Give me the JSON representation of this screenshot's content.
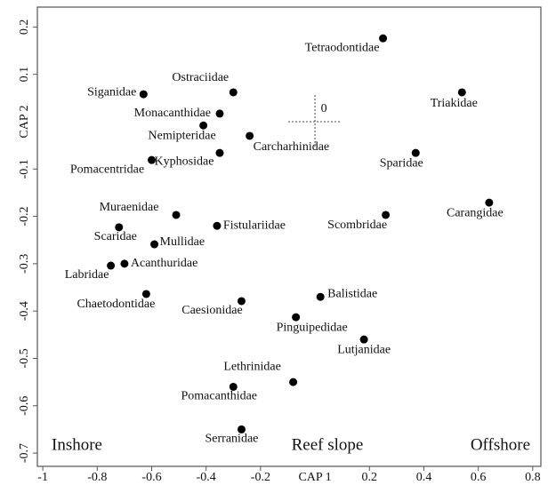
{
  "chart_data": {
    "type": "scatter",
    "xlabel": "CAP 1",
    "ylabel": "CAP 2",
    "xlim": [
      -1.02,
      0.83
    ],
    "ylim": [
      -0.728,
      0.242
    ],
    "xticks": [
      -1,
      -0.8,
      -0.6,
      -0.4,
      -0.2,
      0.2,
      0.4,
      0.6,
      0.8
    ],
    "yticks": [
      0.2,
      0.1,
      -0.1,
      -0.2,
      -0.3,
      -0.4,
      -0.5,
      -0.6,
      -0.7
    ],
    "color": "#000000",
    "annotations": [
      "Inshore",
      "Reef slope",
      "Offshore",
      "0"
    ],
    "labels": [
      "Tetraodontidae",
      "Triakidae",
      "Siganidae",
      "Ostraciidae",
      "Monacanthidae",
      "Nemipteridae",
      "Carcharhinidae",
      "Kyphosidae",
      "Pomacentridae",
      "Sparidae",
      "Carangidae",
      "Muraenidae",
      "Fistulariidae",
      "Scombridae",
      "Scaridae",
      "Mullidae",
      "Acanthuridae",
      "Labridae",
      "Chaetodontidae",
      "Caesionidae",
      "Balistidae",
      "Pinguipedidae",
      "Lutjanidae",
      "Lethrinidae",
      "Pomacanthidae",
      "Serranidae"
    ],
    "x": [
      0.25,
      0.54,
      -0.63,
      -0.3,
      -0.35,
      -0.41,
      -0.24,
      -0.35,
      -0.6,
      0.37,
      0.64,
      -0.51,
      -0.36,
      0.26,
      -0.72,
      -0.59,
      -0.7,
      -0.75,
      -0.62,
      -0.27,
      0.02,
      -0.07,
      0.18,
      -0.08,
      -0.3,
      -0.27
    ],
    "y": [
      0.176,
      0.062,
      0.058,
      0.062,
      0.017,
      -0.008,
      -0.03,
      -0.066,
      -0.081,
      -0.066,
      -0.171,
      -0.197,
      -0.22,
      -0.197,
      -0.223,
      -0.259,
      -0.3,
      -0.304,
      -0.364,
      -0.379,
      -0.37,
      -0.413,
      -0.46,
      -0.55,
      -0.56,
      -0.65
    ]
  }
}
